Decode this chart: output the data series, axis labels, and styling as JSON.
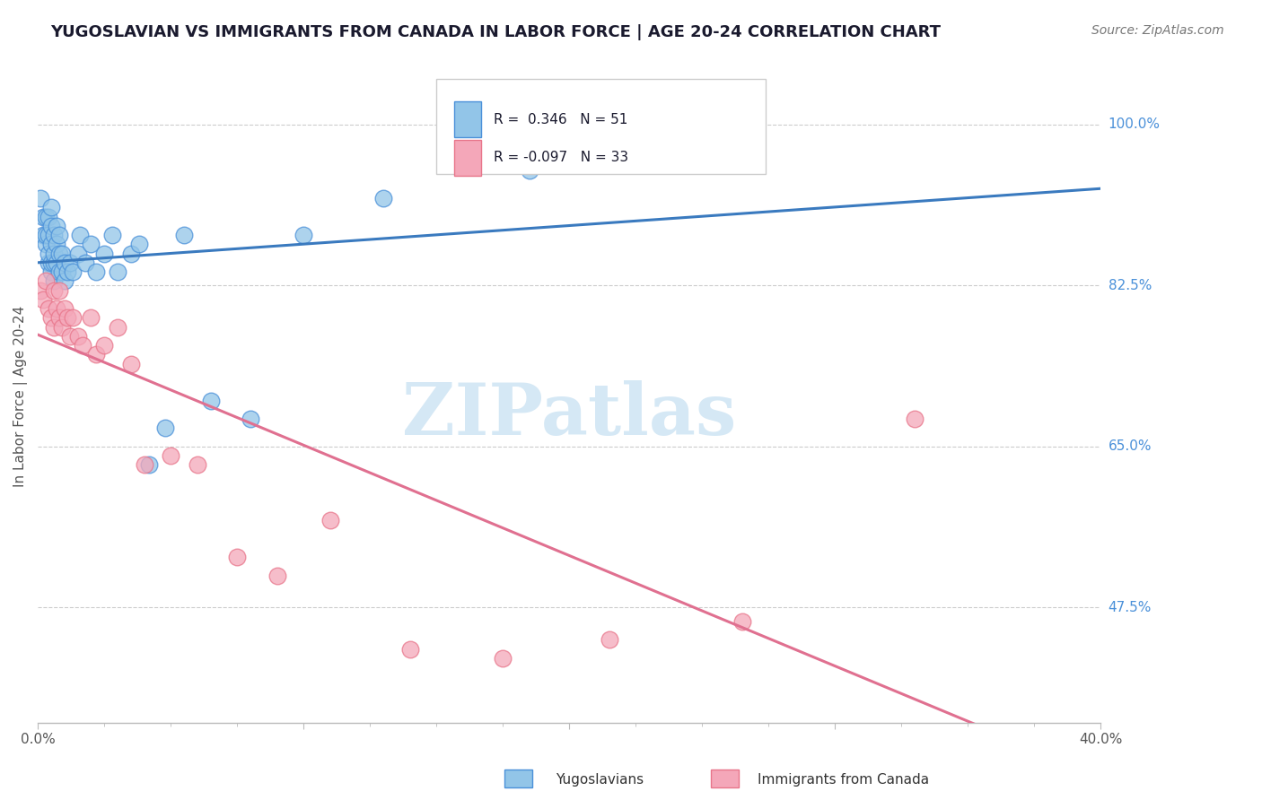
{
  "title": "YUGOSLAVIAN VS IMMIGRANTS FROM CANADA IN LABOR FORCE | AGE 20-24 CORRELATION CHART",
  "source": "Source: ZipAtlas.com",
  "ylabel": "In Labor Force | Age 20-24",
  "ylabel_ticks": [
    "100.0%",
    "82.5%",
    "65.0%",
    "47.5%"
  ],
  "ylabel_tick_vals": [
    1.0,
    0.825,
    0.65,
    0.475
  ],
  "legend_entry1_r": "0.346",
  "legend_entry1_n": "51",
  "legend_entry2_r": "-0.097",
  "legend_entry2_n": "33",
  "legend_label1": "Yugoslavians",
  "legend_label2": "Immigrants from Canada",
  "blue_color": "#92c5e8",
  "pink_color": "#f4a7b9",
  "blue_edge_color": "#4a90d9",
  "pink_edge_color": "#e8758a",
  "blue_line_color": "#3a7abf",
  "pink_line_color": "#e07090",
  "watermark_color": "#d5e8f5",
  "xmin": 0.0,
  "xmax": 0.4,
  "ymin": 0.35,
  "ymax": 1.06,
  "blue_scatter_x": [
    0.001,
    0.002,
    0.002,
    0.003,
    0.003,
    0.003,
    0.004,
    0.004,
    0.004,
    0.004,
    0.005,
    0.005,
    0.005,
    0.005,
    0.005,
    0.006,
    0.006,
    0.006,
    0.006,
    0.007,
    0.007,
    0.007,
    0.008,
    0.008,
    0.008,
    0.009,
    0.009,
    0.01,
    0.01,
    0.011,
    0.012,
    0.013,
    0.015,
    0.016,
    0.018,
    0.02,
    0.022,
    0.025,
    0.028,
    0.03,
    0.035,
    0.038,
    0.042,
    0.048,
    0.055,
    0.065,
    0.08,
    0.1,
    0.13,
    0.185,
    0.24
  ],
  "blue_scatter_y": [
    0.92,
    0.88,
    0.9,
    0.87,
    0.88,
    0.9,
    0.85,
    0.86,
    0.88,
    0.9,
    0.84,
    0.85,
    0.87,
    0.89,
    0.91,
    0.83,
    0.85,
    0.86,
    0.88,
    0.85,
    0.87,
    0.89,
    0.84,
    0.86,
    0.88,
    0.84,
    0.86,
    0.83,
    0.85,
    0.84,
    0.85,
    0.84,
    0.86,
    0.88,
    0.85,
    0.87,
    0.84,
    0.86,
    0.88,
    0.84,
    0.86,
    0.87,
    0.63,
    0.67,
    0.88,
    0.7,
    0.68,
    0.88,
    0.92,
    0.95,
    0.99
  ],
  "pink_scatter_x": [
    0.001,
    0.002,
    0.003,
    0.004,
    0.005,
    0.006,
    0.006,
    0.007,
    0.008,
    0.008,
    0.009,
    0.01,
    0.011,
    0.012,
    0.013,
    0.015,
    0.017,
    0.02,
    0.022,
    0.025,
    0.03,
    0.035,
    0.04,
    0.05,
    0.06,
    0.075,
    0.09,
    0.11,
    0.14,
    0.175,
    0.215,
    0.265,
    0.33
  ],
  "pink_scatter_y": [
    0.82,
    0.81,
    0.83,
    0.8,
    0.79,
    0.82,
    0.78,
    0.8,
    0.82,
    0.79,
    0.78,
    0.8,
    0.79,
    0.77,
    0.79,
    0.77,
    0.76,
    0.79,
    0.75,
    0.76,
    0.78,
    0.74,
    0.63,
    0.64,
    0.63,
    0.53,
    0.51,
    0.57,
    0.43,
    0.42,
    0.44,
    0.46,
    0.68
  ]
}
